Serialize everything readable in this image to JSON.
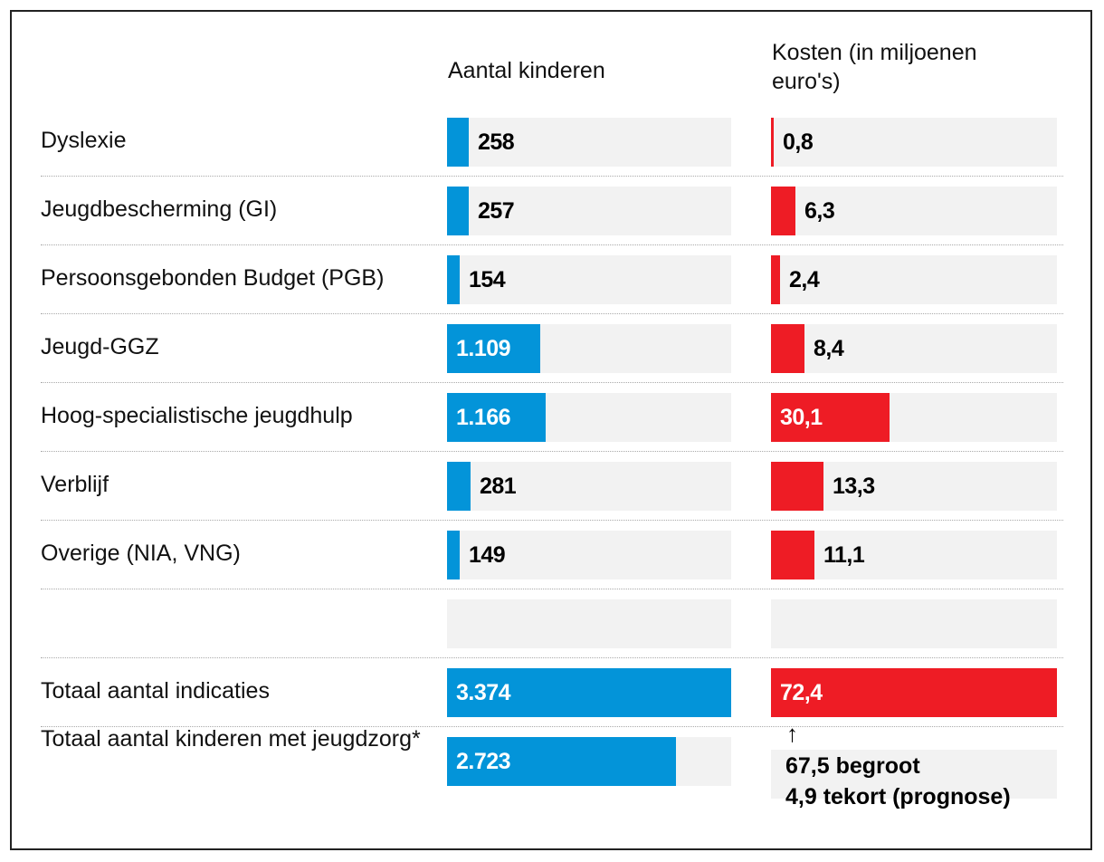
{
  "chart_data": {
    "type": "table",
    "columns": [
      {
        "title": "Aantal kinderen",
        "max": 3374,
        "color": "#0394d9"
      },
      {
        "title": "Kosten (in miljoenen euro's)",
        "max": 72.4,
        "color": "#ee1c25"
      }
    ],
    "rows": [
      {
        "label": "Dyslexie",
        "kinderen": 258,
        "kinderen_label": "258",
        "kosten": 0.8,
        "kosten_label": "0,8"
      },
      {
        "label": "Jeugdbescherming (GI)",
        "kinderen": 257,
        "kinderen_label": "257",
        "kosten": 6.3,
        "kosten_label": "6,3"
      },
      {
        "label": "Persoonsgebonden Budget (PGB)",
        "kinderen": 154,
        "kinderen_label": "154",
        "kosten": 2.4,
        "kosten_label": "2,4"
      },
      {
        "label": "Jeugd-GGZ",
        "kinderen": 1109,
        "kinderen_label": "1.109",
        "kosten": 8.4,
        "kosten_label": "8,4"
      },
      {
        "label": "Hoog-specialistische jeugdhulp",
        "kinderen": 1166,
        "kinderen_label": "1.166",
        "kosten": 30.1,
        "kosten_label": "30,1"
      },
      {
        "label": "Verblijf",
        "kinderen": 281,
        "kinderen_label": "281",
        "kosten": 13.3,
        "kosten_label": "13,3"
      },
      {
        "label": "Overige (NIA, VNG)",
        "kinderen": 149,
        "kinderen_label": "149",
        "kosten": 11.1,
        "kosten_label": "11,1"
      },
      {
        "label": "",
        "kinderen": null,
        "kinderen_label": "",
        "kosten": null,
        "kosten_label": ""
      },
      {
        "label": "Totaal aantal indicaties",
        "kinderen": 3374,
        "kinderen_label": "3.374",
        "kosten": 72.4,
        "kosten_label": "72,4"
      },
      {
        "label": "Totaal aantal kinderen met jeugdzorg*",
        "kinderen": 2723,
        "kinderen_label": "2.723",
        "kosten": null,
        "kosten_label": ""
      }
    ],
    "annotation": {
      "arrow": "↑",
      "line1": "67,5 begroot",
      "line2": "4,9 tekort (prognose)"
    }
  },
  "colors": {
    "blue": "#0394d9",
    "red": "#ee1c25",
    "track": "#f2f2f2"
  }
}
